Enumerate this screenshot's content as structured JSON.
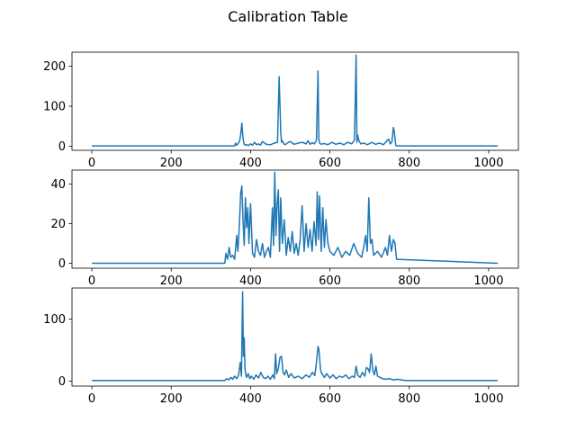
{
  "figure": {
    "title": "Calibration Table"
  },
  "colors": {
    "series": "#1f77b4",
    "axes": "#000000",
    "background": "#ffffff"
  },
  "chart_data": [
    {
      "type": "line",
      "title": "",
      "xlabel": "",
      "ylabel": "",
      "xlim": [
        -50,
        1075
      ],
      "ylim": [
        -10,
        235
      ],
      "xticks": [
        0,
        200,
        400,
        600,
        800,
        1000
      ],
      "yticks": [
        0,
        100,
        200
      ],
      "grid": false,
      "series": [
        {
          "x": [
            0,
            360,
            362,
            365,
            368,
            372,
            375,
            378,
            381,
            384,
            387,
            390,
            395,
            400,
            405,
            410,
            415,
            420,
            425,
            430,
            440,
            450,
            460,
            468,
            472,
            476,
            478,
            480,
            484,
            488,
            492,
            500,
            510,
            520,
            530,
            540,
            545,
            550,
            555,
            560,
            566,
            570,
            572,
            574,
            578,
            585,
            595,
            605,
            615,
            625,
            635,
            645,
            655,
            662,
            666,
            668,
            670,
            673,
            678,
            685,
            695,
            705,
            715,
            725,
            735,
            742,
            748,
            752,
            756,
            760,
            762,
            764,
            766,
            770,
            1023
          ],
          "y": [
            1,
            1,
            8,
            3,
            6,
            12,
            28,
            58,
            20,
            5,
            3,
            4,
            2,
            6,
            3,
            10,
            4,
            6,
            3,
            12,
            5,
            4,
            8,
            10,
            174,
            36,
            10,
            14,
            6,
            4,
            8,
            12,
            5,
            8,
            10,
            6,
            14,
            5,
            9,
            6,
            14,
            188,
            20,
            8,
            5,
            7,
            4,
            10,
            5,
            8,
            4,
            10,
            6,
            16,
            228,
            10,
            28,
            14,
            6,
            8,
            4,
            10,
            5,
            8,
            4,
            12,
            18,
            6,
            10,
            47,
            38,
            20,
            2,
            1,
            1
          ]
        }
      ]
    },
    {
      "type": "line",
      "title": "",
      "xlabel": "",
      "ylabel": "",
      "xlim": [
        -50,
        1075
      ],
      "ylim": [
        -2.5,
        47
      ],
      "xticks": [
        0,
        200,
        400,
        600,
        800,
        1000
      ],
      "yticks": [
        0,
        20,
        40
      ],
      "grid": false,
      "series": [
        {
          "x": [
            0,
            335,
            338,
            342,
            346,
            350,
            355,
            360,
            365,
            368,
            372,
            375,
            378,
            381,
            384,
            387,
            390,
            393,
            396,
            400,
            405,
            410,
            415,
            420,
            425,
            430,
            435,
            440,
            445,
            450,
            455,
            458,
            461,
            464,
            467,
            470,
            473,
            476,
            480,
            485,
            490,
            495,
            500,
            505,
            510,
            515,
            520,
            525,
            530,
            535,
            540,
            545,
            550,
            555,
            560,
            565,
            568,
            571,
            574,
            578,
            582,
            586,
            590,
            595,
            600,
            610,
            620,
            630,
            640,
            650,
            660,
            670,
            680,
            685,
            690,
            694,
            698,
            702,
            706,
            710,
            720,
            730,
            740,
            745,
            750,
            755,
            760,
            764,
            768,
            1023
          ],
          "y": [
            0,
            0,
            5,
            2,
            8,
            3,
            4,
            2,
            14,
            6,
            20,
            35,
            39,
            22,
            9,
            33,
            18,
            28,
            10,
            30,
            5,
            3,
            12,
            6,
            4,
            10,
            3,
            6,
            8,
            3,
            28,
            9,
            46,
            14,
            30,
            37,
            6,
            33,
            10,
            22,
            4,
            13,
            6,
            16,
            5,
            10,
            4,
            12,
            29,
            6,
            20,
            8,
            17,
            6,
            21,
            9,
            36,
            12,
            34,
            6,
            28,
            8,
            22,
            10,
            6,
            4,
            8,
            3,
            6,
            4,
            10,
            5,
            3,
            8,
            14,
            6,
            33,
            10,
            12,
            4,
            6,
            3,
            8,
            4,
            14,
            6,
            12,
            10,
            2,
            0
          ]
        }
      ]
    },
    {
      "type": "line",
      "title": "",
      "xlabel": "",
      "ylabel": "",
      "xlim": [
        -50,
        1075
      ],
      "ylim": [
        -8,
        150
      ],
      "xticks": [
        0,
        200,
        400,
        600,
        800,
        1000
      ],
      "yticks": [
        0,
        100
      ],
      "grid": false,
      "series": [
        {
          "x": [
            0,
            335,
            340,
            345,
            350,
            355,
            360,
            365,
            370,
            374,
            377,
            380,
            382,
            384,
            386,
            388,
            390,
            394,
            398,
            402,
            408,
            414,
            420,
            426,
            432,
            438,
            444,
            450,
            456,
            460,
            463,
            466,
            470,
            474,
            478,
            482,
            486,
            490,
            496,
            502,
            510,
            520,
            530,
            540,
            548,
            556,
            562,
            566,
            570,
            572,
            574,
            576,
            578,
            582,
            586,
            592,
            600,
            608,
            616,
            624,
            632,
            640,
            648,
            656,
            662,
            666,
            670,
            676,
            682,
            688,
            692,
            696,
            700,
            704,
            708,
            712,
            716,
            720,
            726,
            732,
            740,
            750,
            760,
            770,
            780,
            790,
            800,
            1023
          ],
          "y": [
            1,
            1,
            4,
            2,
            6,
            3,
            8,
            4,
            10,
            30,
            8,
            144,
            40,
            70,
            20,
            10,
            6,
            12,
            4,
            8,
            3,
            10,
            5,
            14,
            6,
            4,
            8,
            3,
            10,
            4,
            44,
            12,
            20,
            38,
            40,
            14,
            10,
            18,
            6,
            12,
            5,
            8,
            4,
            10,
            6,
            14,
            9,
            30,
            56,
            52,
            38,
            20,
            14,
            10,
            6,
            12,
            5,
            10,
            4,
            8,
            6,
            10,
            4,
            8,
            6,
            24,
            10,
            6,
            14,
            8,
            22,
            20,
            14,
            44,
            18,
            10,
            24,
            8,
            6,
            4,
            3,
            4,
            2,
            3,
            2,
            1,
            1,
            1
          ]
        }
      ]
    }
  ]
}
